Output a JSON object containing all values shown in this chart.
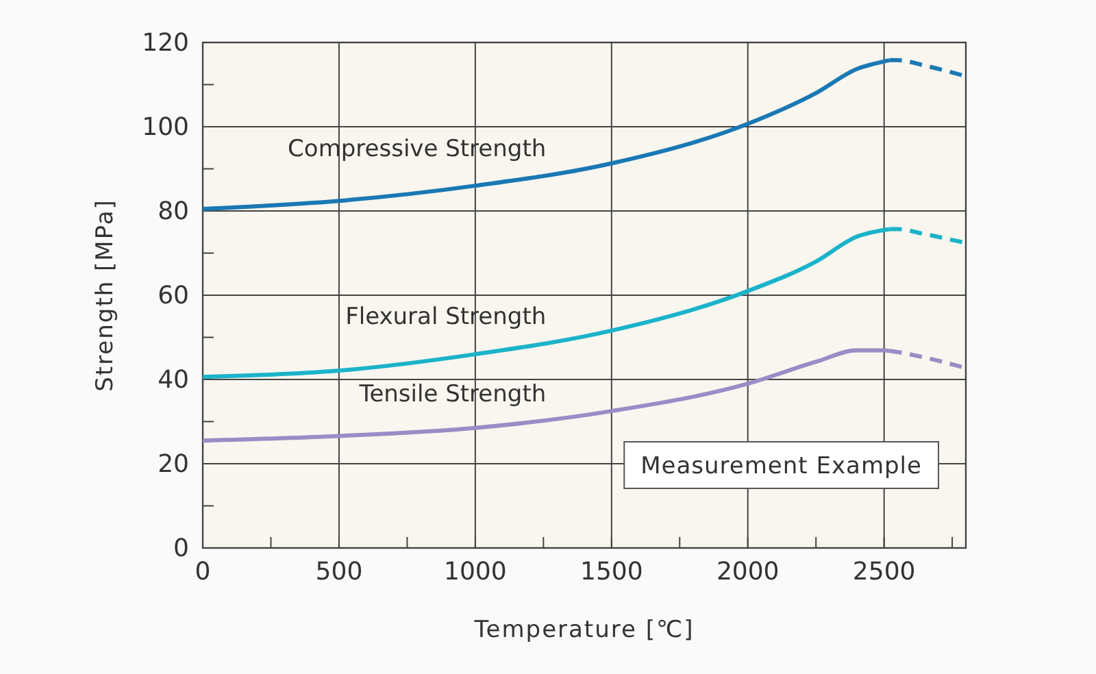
{
  "chart_data": {
    "type": "line",
    "xlabel": "Temperature [℃]",
    "ylabel": "Strength [MPa]",
    "xlim": [
      0,
      2800
    ],
    "xticks": [
      0,
      {
        "value": 250,
        "label": null
      },
      500,
      {
        "value": 750,
        "label": null
      },
      1000,
      {
        "value": 1250,
        "label": null
      },
      1500,
      {
        "value": 1750,
        "label": null
      },
      2000,
      {
        "value": 2250,
        "label": null
      },
      2500,
      {
        "value": 2750,
        "label": null
      }
    ],
    "ylim": [
      0,
      120
    ],
    "yticks": [
      0,
      {
        "value": 10,
        "label": null
      },
      20,
      {
        "value": 30,
        "label": null
      },
      40,
      {
        "value": 50,
        "label": null
      },
      60,
      {
        "value": 70,
        "label": null
      },
      80,
      {
        "value": 90,
        "label": null
      },
      100,
      {
        "value": 110,
        "label": null
      },
      120
    ],
    "grid": true,
    "annotations": [
      "Measurement Example"
    ],
    "series": [
      {
        "name": "Compressive Strength",
        "color": "#1a78b4",
        "x": [
          0,
          500,
          1000,
          1500,
          2000,
          2250,
          2400,
          2500,
          2520
        ],
        "values": [
          80.5,
          82.4,
          86,
          91.3,
          100.7,
          108,
          113.7,
          115.5,
          115.8
        ]
      },
      {
        "color": "#1a78b4",
        "line_style": "dashed",
        "x": [
          2520,
          2550,
          2650,
          2800
        ],
        "values": [
          115.8,
          115.8,
          114.5,
          112
        ]
      },
      {
        "name": "Flexural Strength",
        "color": "#1bb3c9",
        "x": [
          0,
          500,
          1000,
          1500,
          2000,
          2250,
          2400,
          2500,
          2520
        ],
        "values": [
          40.6,
          42.1,
          46,
          51.6,
          61,
          68,
          73.9,
          75.5,
          75.7
        ]
      },
      {
        "color": "#1bb3c9",
        "line_style": "dashed",
        "x": [
          2520,
          2550,
          2650,
          2800
        ],
        "values": [
          75.7,
          75.7,
          74.5,
          72.4
        ]
      },
      {
        "name": "Tensile Strength",
        "color": "#9a8cc6",
        "x": [
          0,
          500,
          1000,
          1500,
          2000,
          2250,
          2400,
          2500,
          2520
        ],
        "values": [
          25.5,
          26.6,
          28.5,
          32.5,
          39,
          44.2,
          46.9,
          46.9,
          46.8
        ]
      },
      {
        "color": "#9a8cc6",
        "line_style": "dashed",
        "x": [
          2520,
          2550,
          2650,
          2800
        ],
        "values": [
          46.8,
          46.5,
          45.2,
          42.7
        ]
      }
    ]
  }
}
